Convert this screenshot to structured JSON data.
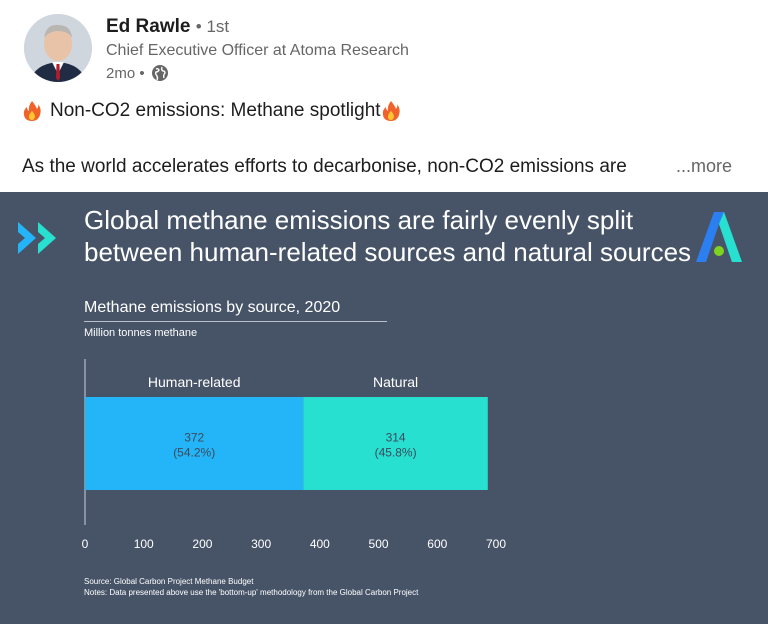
{
  "post": {
    "author": {
      "name": "Ed Rawle",
      "degree": "• 1st",
      "title": "Chief Executive Officer at Atoma Research",
      "time": "2mo •"
    },
    "headline": "Non-CO2 emissions: Methane spotlight",
    "body": "As the world accelerates efforts to decarbonise, non-CO2 emissions are",
    "more_label": "...more"
  },
  "infographic": {
    "title": "Global methane emissions are fairly evenly split between human-related sources and natural sources",
    "chart_title": "Methane emissions by source, 2020",
    "unit": "Million tonnes methane",
    "source_line": "Source: Global Carbon Project Methane Budget",
    "notes_line": "Notes: Data presented above use the 'bottom-up' methodology from the Global Carbon Project"
  },
  "chart_data": {
    "type": "bar",
    "orientation": "horizontal-stacked",
    "title": "Methane emissions by source, 2020",
    "unit": "Million tonnes methane",
    "xlim": [
      0,
      700
    ],
    "xticks": [
      0,
      100,
      200,
      300,
      400,
      500,
      600,
      700
    ],
    "series": [
      {
        "name": "Human-related",
        "value": 372,
        "label": "372",
        "share": "(54.2%)",
        "color": "#23b5f7"
      },
      {
        "name": "Natural",
        "value": 314,
        "label": "314",
        "share": "(45.8%)",
        "color": "#27e0d0"
      }
    ]
  }
}
